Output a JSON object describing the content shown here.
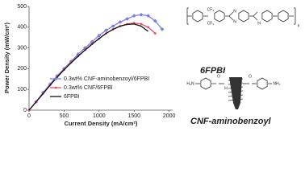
{
  "chart_data": {
    "type": "line",
    "x_label": "Current Density (mA/cm²)",
    "y_label": "Power Density (mW/cm²)",
    "x": [
      0,
      100,
      200,
      300,
      400,
      500,
      600,
      700,
      800,
      900,
      1000,
      1100,
      1200,
      1300,
      1400,
      1500,
      1600,
      1700,
      1800,
      1900
    ],
    "series": [
      {
        "name": "0.3wt% CNF-aminobenzoyl/6FPBI",
        "color": "#7b7fe0",
        "marker": "diamond",
        "values": [
          0,
          40,
          85,
          125,
          165,
          200,
          235,
          270,
          300,
          330,
          360,
          385,
          405,
          425,
          440,
          455,
          460,
          455,
          430,
          390
        ]
      },
      {
        "name": "0.3wt% CNF/6FPBI",
        "color": "#e0506a",
        "marker": "circle",
        "values": [
          0,
          40,
          80,
          120,
          160,
          195,
          230,
          260,
          290,
          320,
          345,
          370,
          390,
          405,
          415,
          420,
          415,
          400,
          370,
          null
        ]
      },
      {
        "name": "6FPBI",
        "color": "#111111",
        "marker": "none",
        "values": [
          0,
          40,
          80,
          120,
          158,
          195,
          228,
          260,
          290,
          318,
          345,
          370,
          390,
          405,
          413,
          415,
          405,
          380,
          null,
          null
        ]
      }
    ],
    "xlim": [
      0,
      2050
    ],
    "xticks": [
      0,
      500,
      1000,
      1500,
      2000
    ],
    "ylim": [
      0,
      500
    ],
    "yticks": [
      0,
      100,
      200,
      300,
      400,
      500
    ],
    "legend": "bottom"
  },
  "structures": {
    "polymer_name": "6FPBI",
    "filler_name": "CNF-aminobenzoyl",
    "atoms": {
      "cf3": "CF₃",
      "n": "n",
      "nh": "N",
      "h": "H",
      "h2n": "H₂N",
      "nh2": "NH₂",
      "o": "O"
    }
  }
}
